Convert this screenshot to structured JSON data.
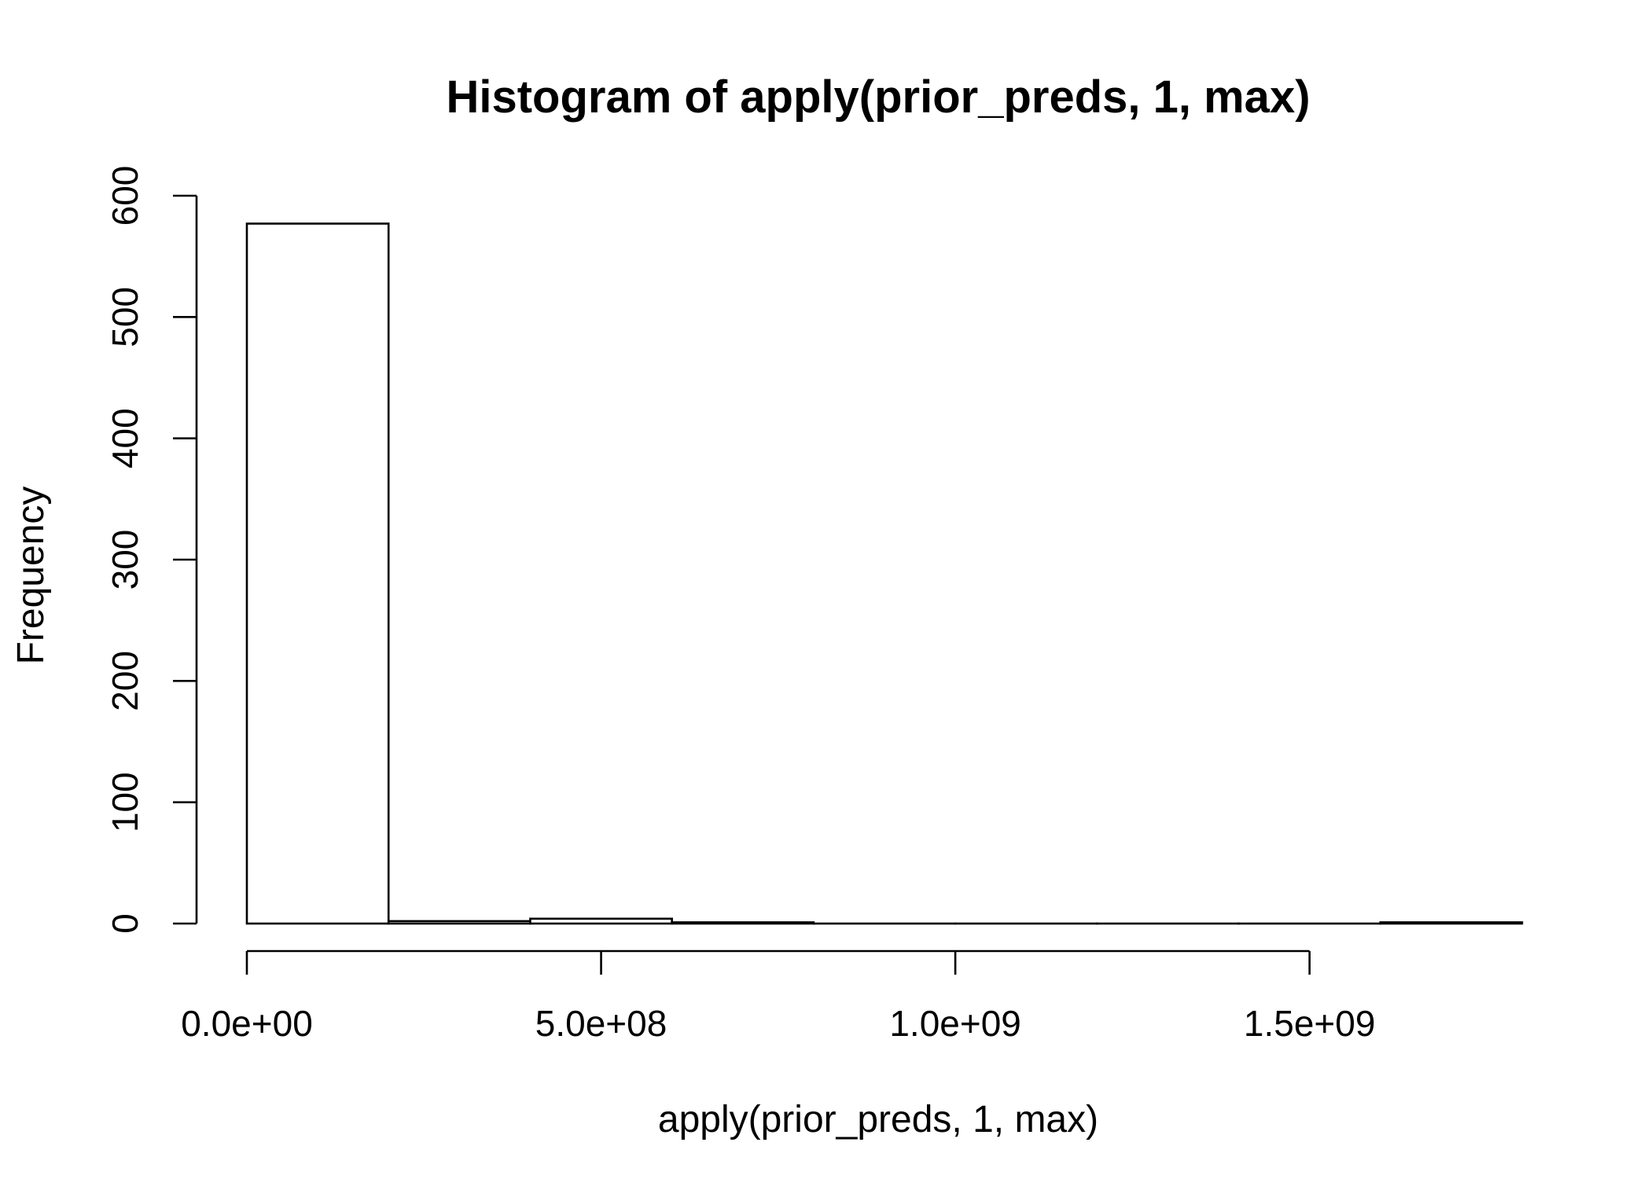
{
  "chart_data": {
    "type": "bar",
    "title": "Histogram of apply(prior_preds, 1, max)",
    "xlabel": "apply(prior_preds, 1, max)",
    "ylabel": "Frequency",
    "bins": [
      {
        "start": 0,
        "end": 200000000,
        "count": 577
      },
      {
        "start": 200000000,
        "end": 400000000,
        "count": 2
      },
      {
        "start": 400000000,
        "end": 600000000,
        "count": 4
      },
      {
        "start": 600000000,
        "end": 800000000,
        "count": 1
      },
      {
        "start": 800000000,
        "end": 1000000000,
        "count": 0
      },
      {
        "start": 1000000000,
        "end": 1200000000,
        "count": 0
      },
      {
        "start": 1200000000,
        "end": 1400000000,
        "count": 0
      },
      {
        "start": 1400000000,
        "end": 1600000000,
        "count": 0
      },
      {
        "start": 1600000000,
        "end": 1800000000,
        "count": 1
      }
    ],
    "x_ticks": [
      {
        "value": 0,
        "label": "0.0e+00"
      },
      {
        "value": 500000000,
        "label": "5.0e+08"
      },
      {
        "value": 1000000000,
        "label": "1.0e+09"
      },
      {
        "value": 1500000000,
        "label": "1.5e+09"
      }
    ],
    "y_ticks": [
      {
        "value": 0,
        "label": "0"
      },
      {
        "value": 100,
        "label": "100"
      },
      {
        "value": 200,
        "label": "200"
      },
      {
        "value": 300,
        "label": "300"
      },
      {
        "value": 400,
        "label": "400"
      },
      {
        "value": 500,
        "label": "500"
      },
      {
        "value": 600,
        "label": "600"
      }
    ],
    "xlim": [
      0,
      1800000000
    ],
    "ylim": [
      0,
      600
    ],
    "grid": false,
    "colors": {
      "bar_fill": "#ffffff",
      "bar_stroke": "#000000",
      "background": "#ffffff"
    }
  }
}
